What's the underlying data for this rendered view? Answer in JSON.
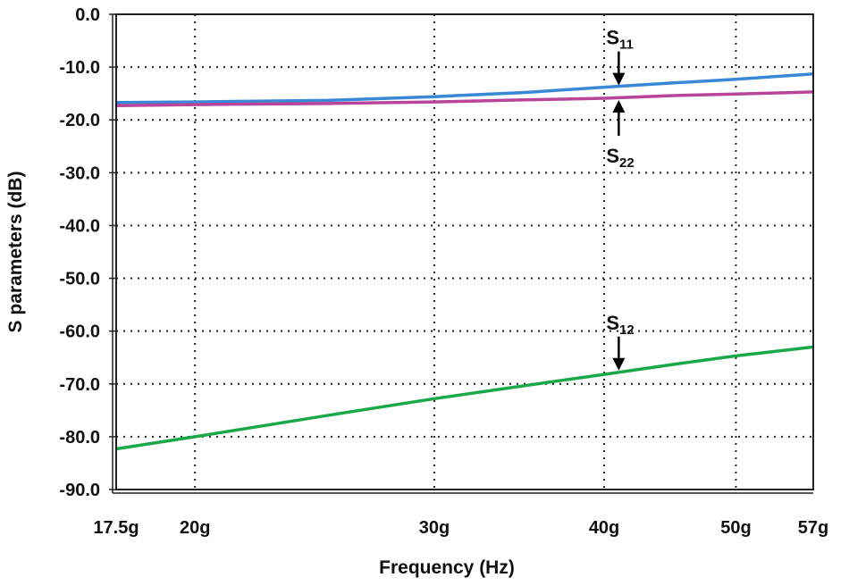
{
  "chart_data": {
    "type": "line",
    "xlabel": "Frequency (Hz)",
    "ylabel": "S parameters (dB)",
    "xscale": "log",
    "xlim": [
      17.5,
      57
    ],
    "ylim": [
      -90,
      0
    ],
    "grid": true,
    "xticks": [
      {
        "v": 17.5,
        "label": "17.5g"
      },
      {
        "v": 20,
        "label": "20g"
      },
      {
        "v": 30,
        "label": "30g"
      },
      {
        "v": 40,
        "label": "40g"
      },
      {
        "v": 50,
        "label": "50g"
      },
      {
        "v": 57,
        "label": "57g"
      }
    ],
    "yticks": [
      {
        "v": 0,
        "label": "0.0"
      },
      {
        "v": -10,
        "label": "-10.0"
      },
      {
        "v": -20,
        "label": "-20.0"
      },
      {
        "v": -30,
        "label": "-30.0"
      },
      {
        "v": -40,
        "label": "-40.0"
      },
      {
        "v": -50,
        "label": "-50.0"
      },
      {
        "v": -60,
        "label": "-60.0"
      },
      {
        "v": -70,
        "label": "-70.0"
      },
      {
        "v": -80,
        "label": "-80.0"
      },
      {
        "v": -90,
        "label": "-90.0"
      }
    ],
    "series": [
      {
        "name": "S11",
        "color": "#3a87d6",
        "x": [
          17.5,
          20,
          25,
          30,
          35,
          40,
          45,
          50,
          57
        ],
        "y": [
          -16.7,
          -16.6,
          -16.3,
          -15.6,
          -14.8,
          -13.8,
          -13.0,
          -12.3,
          -11.3
        ]
      },
      {
        "name": "S22",
        "color": "#b8459a",
        "x": [
          17.5,
          20,
          25,
          30,
          35,
          40,
          45,
          50,
          57
        ],
        "y": [
          -17.3,
          -17.1,
          -16.9,
          -16.6,
          -16.2,
          -15.9,
          -15.4,
          -15.1,
          -14.7
        ]
      },
      {
        "name": "S12",
        "color": "#1aa84a",
        "x": [
          17.5,
          20,
          25,
          30,
          35,
          40,
          45,
          50,
          57
        ],
        "y": [
          -82.3,
          -80.0,
          -76.0,
          -72.8,
          -70.3,
          -68.2,
          -66.3,
          -64.7,
          -63.0
        ]
      }
    ],
    "annotations": [
      {
        "label": "S",
        "sub": "11",
        "x": 41,
        "y": -13.8,
        "dir": "down"
      },
      {
        "label": "S",
        "sub": "22",
        "x": 41,
        "y": -15.9,
        "dir": "up"
      },
      {
        "label": "S",
        "sub": "12",
        "x": 41,
        "y": -67.8,
        "dir": "down"
      }
    ]
  }
}
